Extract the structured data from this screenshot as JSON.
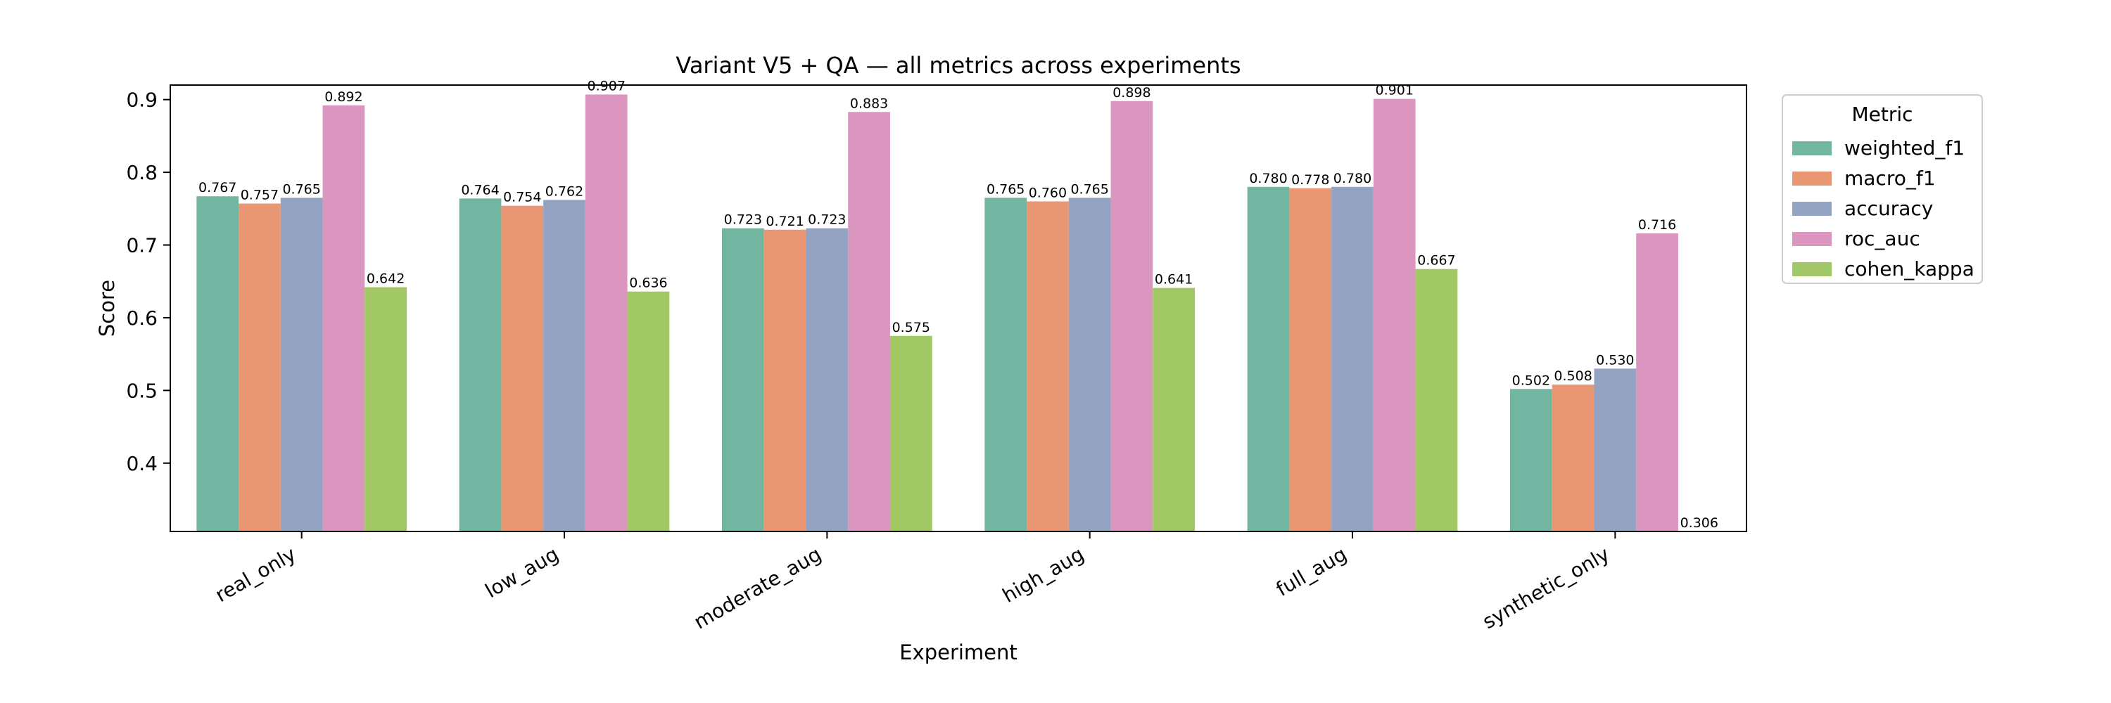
{
  "chart_data": {
    "type": "bar",
    "title": "Variant V5 + QA — all metrics across experiments",
    "xlabel": "Experiment",
    "ylabel": "Score",
    "ylim": [
      0.306,
      0.92
    ],
    "yticks": [
      "0.4",
      "0.5",
      "0.6",
      "0.7",
      "0.8",
      "0.9"
    ],
    "categories": [
      "real_only",
      "low_aug",
      "moderate_aug",
      "high_aug",
      "full_aug",
      "synthetic_only"
    ],
    "legend": {
      "title": "Metric",
      "placement": "upper right, outside plot"
    },
    "grid": false,
    "series": [
      {
        "name": "weighted_f1",
        "color": "#72b6a1",
        "values": [
          0.767,
          0.764,
          0.723,
          0.765,
          0.78,
          0.502
        ],
        "labels": [
          "0.767",
          "0.764",
          "0.723",
          "0.765",
          "0.780",
          "0.502"
        ]
      },
      {
        "name": "macro_f1",
        "color": "#e99675",
        "values": [
          0.757,
          0.754,
          0.721,
          0.76,
          0.778,
          0.508
        ],
        "labels": [
          "0.757",
          "0.754",
          "0.721",
          "0.760",
          "0.778",
          "0.508"
        ]
      },
      {
        "name": "accuracy",
        "color": "#95a3c3",
        "values": [
          0.765,
          0.762,
          0.723,
          0.765,
          0.78,
          0.53
        ],
        "labels": [
          "0.765",
          "0.762",
          "0.723",
          "0.765",
          "0.780",
          "0.530"
        ]
      },
      {
        "name": "roc_auc",
        "color": "#db96c0",
        "values": [
          0.892,
          0.907,
          0.883,
          0.898,
          0.901,
          0.716
        ],
        "labels": [
          "0.892",
          "0.907",
          "0.883",
          "0.898",
          "0.901",
          "0.716"
        ]
      },
      {
        "name": "cohen_kappa",
        "color": "#a2c865",
        "values": [
          0.642,
          0.636,
          0.575,
          0.641,
          0.667,
          0.306
        ],
        "labels": [
          "0.642",
          "0.636",
          "0.575",
          "0.641",
          "0.667",
          "0.306"
        ]
      }
    ]
  }
}
